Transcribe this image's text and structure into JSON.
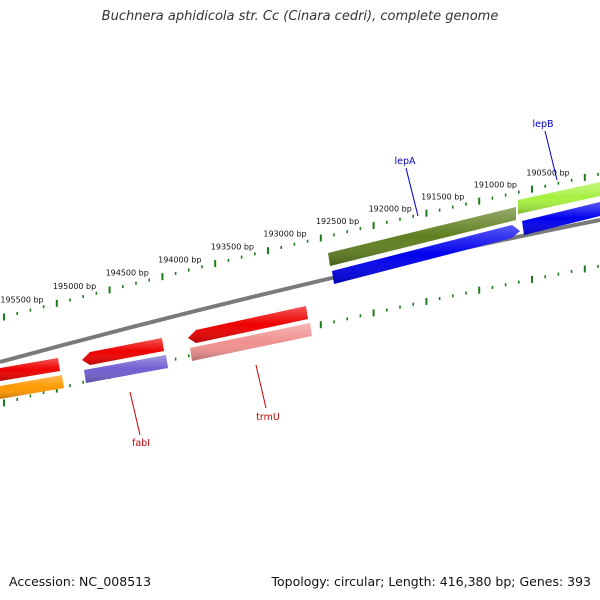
{
  "title": "Buchnera aphidicola str. Cc (Cinara cedri), complete genome",
  "footer": {
    "accession": "Accession: NC_008513",
    "summary": "Topology: circular; Length: 416,380 bp; Genes: 393"
  },
  "colors": {
    "backbone": "#7a7a7a",
    "tick": "#1a7f1a",
    "label_forward": "#0000c8",
    "label_reverse": "#c80000"
  },
  "ruler": {
    "unit": "bp",
    "labels": [
      "190500 bp",
      "191000 bp",
      "191500 bp",
      "192000 bp",
      "192500 bp",
      "193000 bp",
      "193500 bp",
      "194000 bp",
      "194500 bp",
      "195000 bp",
      "195500 bp"
    ]
  },
  "features": [
    {
      "label": "lepB",
      "strand": "forward",
      "color": "#a6f040"
    },
    {
      "label": "lepA",
      "strand": "forward",
      "color": "#5f7f20"
    },
    {
      "label": "",
      "strand": "forward",
      "color": "#0000ee"
    },
    {
      "label": "",
      "strand": "forward",
      "color": "#0000ee"
    },
    {
      "label": "trmU",
      "strand": "reverse",
      "color": "#ee0000"
    },
    {
      "label": "",
      "strand": "reverse",
      "color": "#f09090"
    },
    {
      "label": "fabI",
      "strand": "reverse",
      "color": "#ee0000"
    },
    {
      "label": "",
      "strand": "reverse",
      "color": "#7060d0"
    },
    {
      "label": "",
      "strand": "reverse",
      "color": "#ee0000"
    },
    {
      "label": "",
      "strand": "reverse",
      "color": "#ff9900"
    }
  ]
}
